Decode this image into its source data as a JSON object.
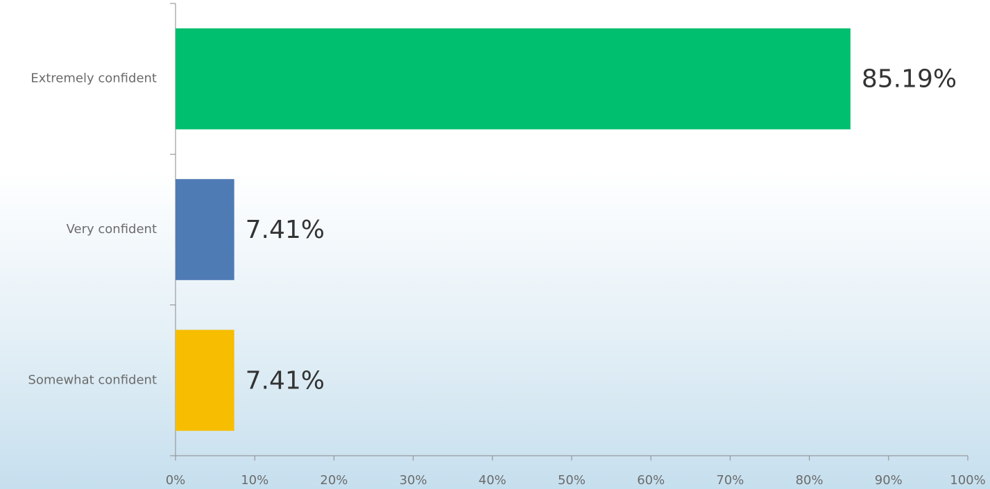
{
  "chart_data": {
    "type": "hbar",
    "categories": [
      "Extremely confident",
      "Very confident",
      "Somewhat confident"
    ],
    "values": [
      85.19,
      7.41,
      7.41
    ],
    "value_labels": [
      "85.19%",
      "7.41%",
      "7.41%"
    ],
    "colors": [
      "#00bf6f",
      "#4f7bb5",
      "#f7bd00"
    ],
    "xlim": [
      0,
      100
    ],
    "xticks": [
      {
        "value": 0,
        "label": "0%"
      },
      {
        "value": 10,
        "label": "10%"
      },
      {
        "value": 20,
        "label": "20%"
      },
      {
        "value": 30,
        "label": "30%"
      },
      {
        "value": 40,
        "label": "40%"
      },
      {
        "value": 50,
        "label": "50%"
      },
      {
        "value": 60,
        "label": "60%"
      },
      {
        "value": 70,
        "label": "70%"
      },
      {
        "value": 80,
        "label": "80%"
      },
      {
        "value": 90,
        "label": "90%"
      },
      {
        "value": 100,
        "label": "100%"
      }
    ]
  }
}
